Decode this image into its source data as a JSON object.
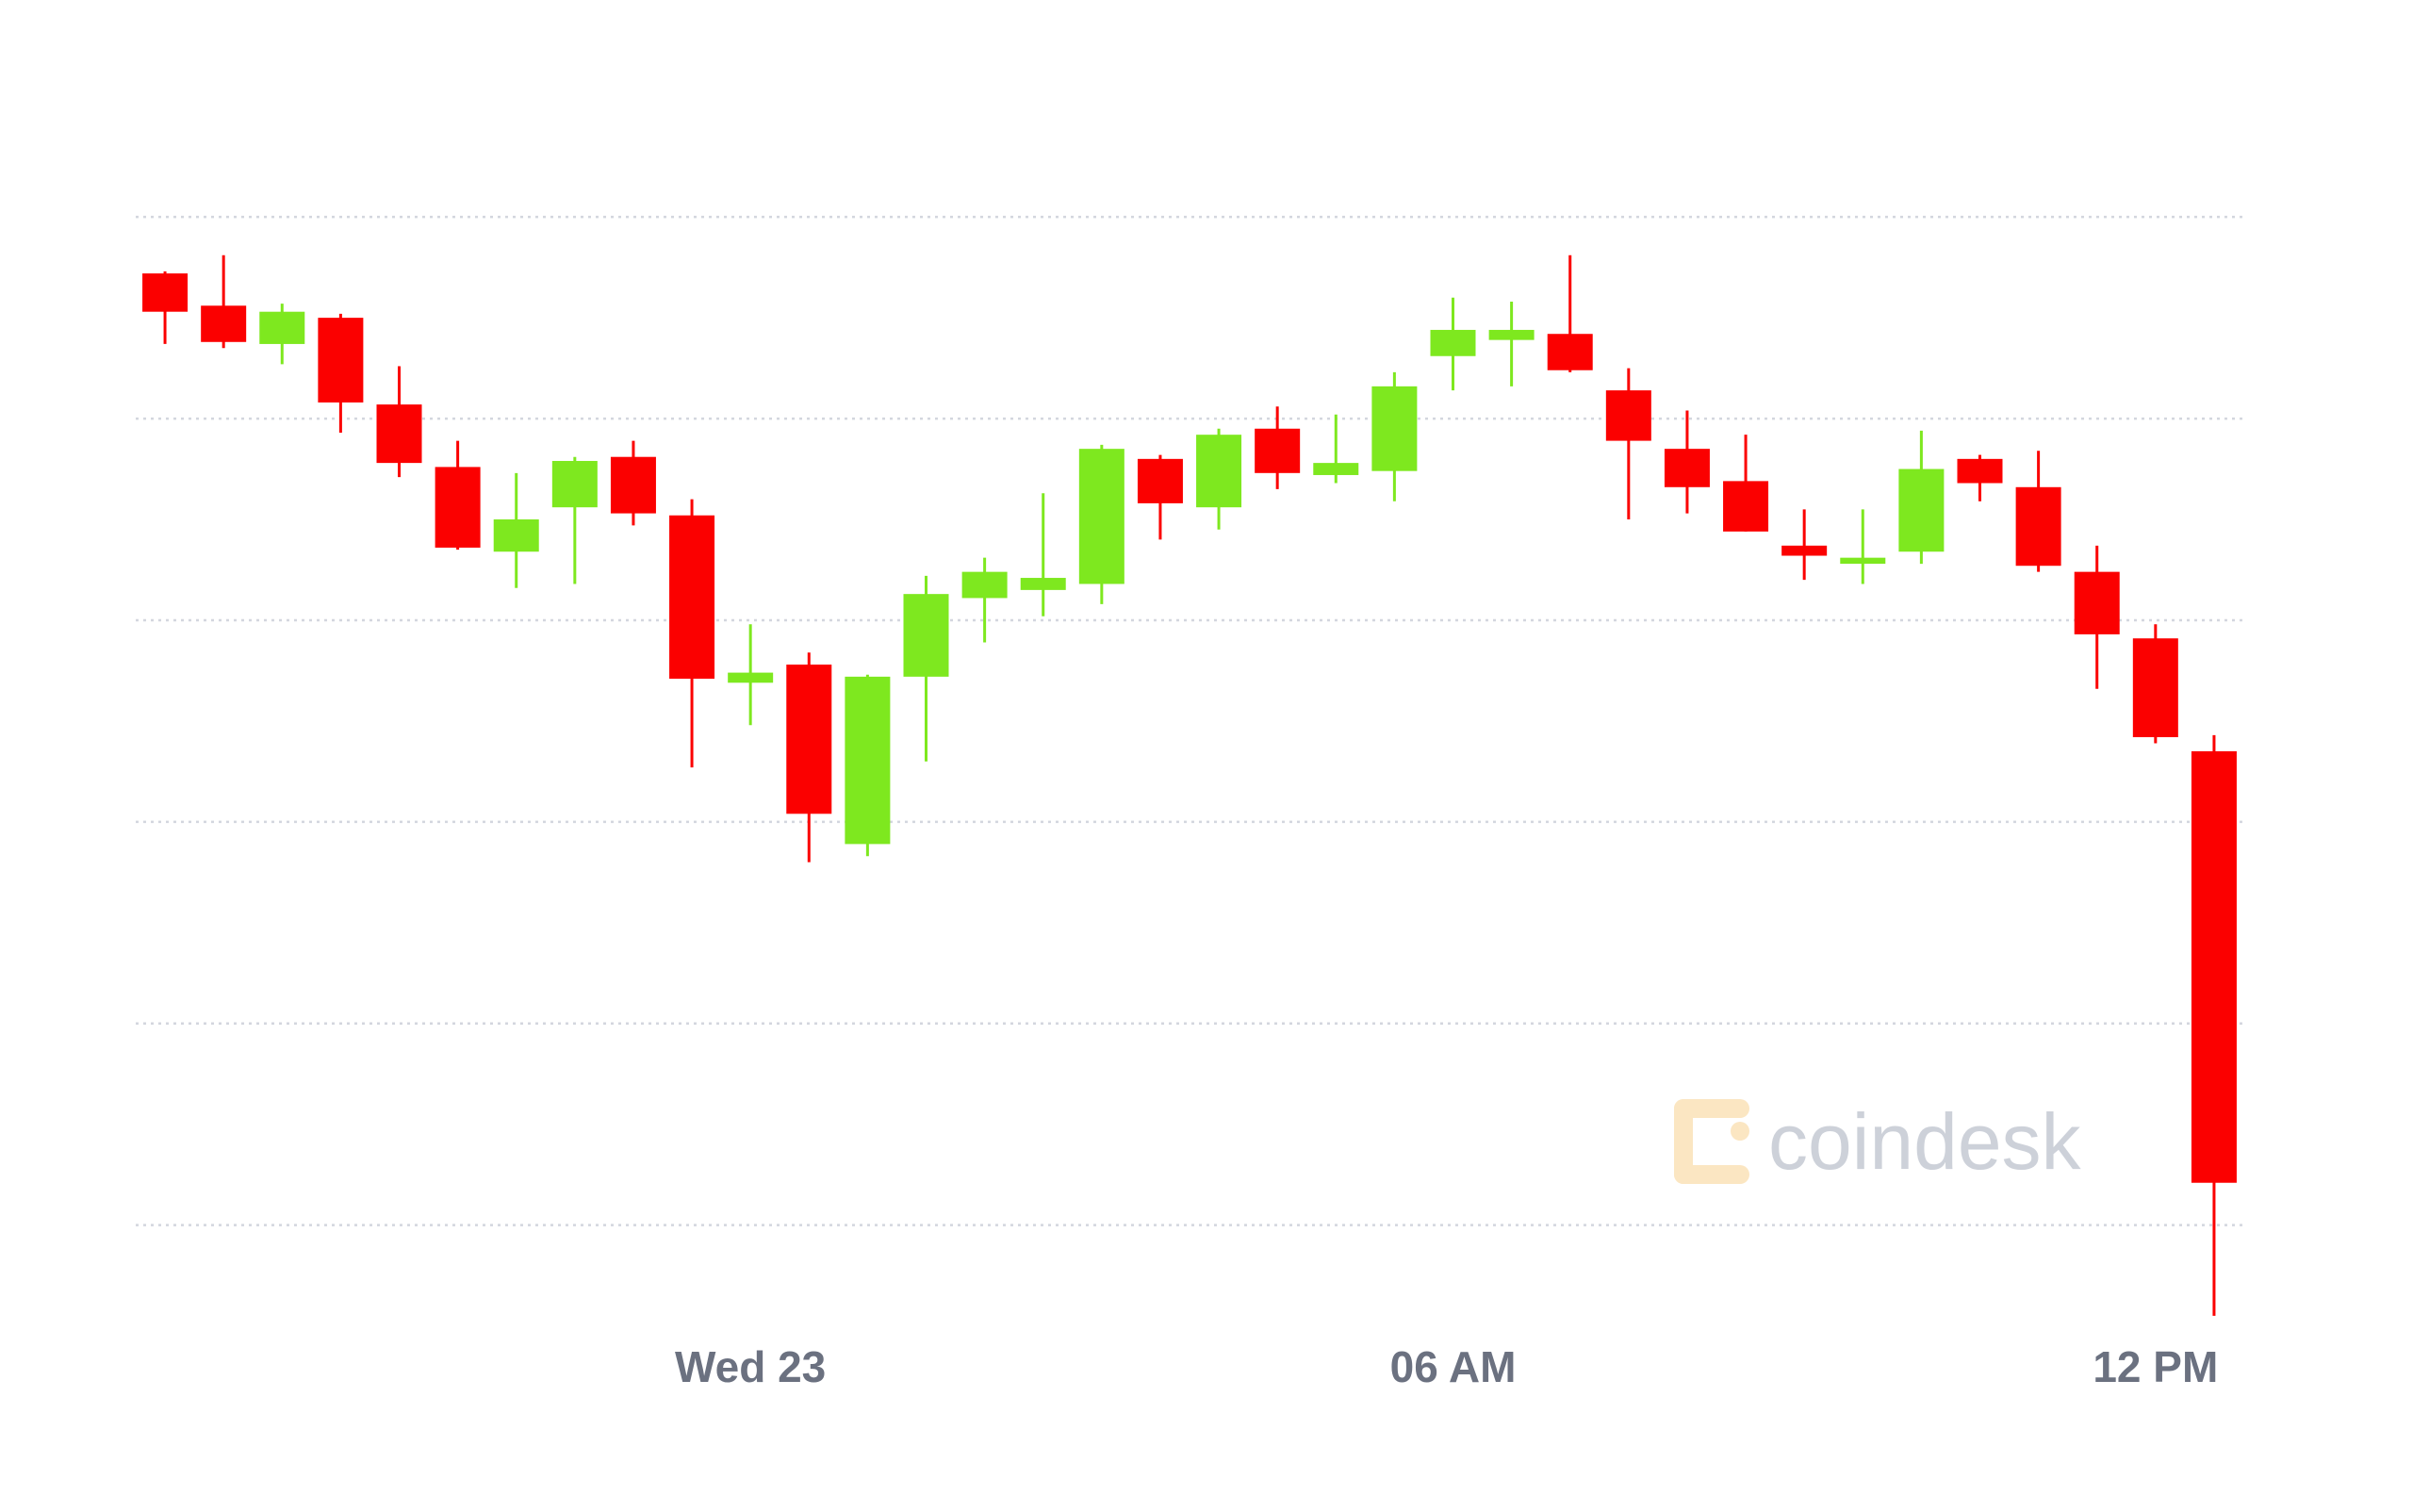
{
  "chart_data": {
    "type": "candlestick",
    "watermark": "coindesk",
    "categories": [
      null,
      null,
      null,
      null,
      null,
      null,
      null,
      null,
      null,
      null,
      "Wed 23",
      null,
      null,
      null,
      null,
      null,
      null,
      null,
      null,
      null,
      null,
      null,
      "06 AM",
      null,
      null,
      null,
      null,
      null,
      null,
      null,
      null,
      null,
      null,
      null,
      "12 PM",
      null
    ],
    "open": [
      4.72,
      4.56,
      4.37,
      4.5,
      4.07,
      3.76,
      3.34,
      3.56,
      3.81,
      3.52,
      2.69,
      2.78,
      1.89,
      2.72,
      3.11,
      3.15,
      3.18,
      3.8,
      3.56,
      3.95,
      3.72,
      3.74,
      4.31,
      4.39,
      4.42,
      4.14,
      3.85,
      3.69,
      3.37,
      3.28,
      3.34,
      3.8,
      3.66,
      3.24,
      2.91,
      2.35
    ],
    "high": [
      4.73,
      4.81,
      4.57,
      4.52,
      4.26,
      3.89,
      3.73,
      3.81,
      3.89,
      3.6,
      2.98,
      2.84,
      2.73,
      3.22,
      3.31,
      3.63,
      3.87,
      3.82,
      3.95,
      4.06,
      4.02,
      4.23,
      4.6,
      4.58,
      4.81,
      4.25,
      4.04,
      3.92,
      3.55,
      3.55,
      3.94,
      3.82,
      3.84,
      3.37,
      2.98,
      2.43
    ],
    "low": [
      4.37,
      4.35,
      4.27,
      3.93,
      3.71,
      3.35,
      3.16,
      3.18,
      3.47,
      2.27,
      2.48,
      1.8,
      1.83,
      2.3,
      2.89,
      3.02,
      3.08,
      3.4,
      3.45,
      3.65,
      3.68,
      3.59,
      4.14,
      4.16,
      4.23,
      3.5,
      3.53,
      3.44,
      3.2,
      3.18,
      3.28,
      3.59,
      3.24,
      2.66,
      2.39,
      -0.45
    ],
    "close": [
      4.53,
      4.38,
      4.53,
      4.08,
      3.78,
      3.36,
      3.5,
      3.79,
      3.53,
      2.71,
      2.74,
      2.04,
      2.72,
      3.13,
      3.24,
      3.21,
      3.85,
      3.58,
      3.92,
      3.73,
      3.78,
      4.16,
      4.44,
      4.44,
      4.24,
      3.89,
      3.66,
      3.44,
      3.32,
      3.31,
      3.75,
      3.68,
      3.27,
      2.93,
      2.42,
      0.21
    ],
    "up_color": "#7ee81f",
    "down_color": "#fb0000",
    "ylim": [
      -0.6,
      5.3
    ],
    "yticks": [
      0,
      1,
      2,
      3,
      4,
      5
    ],
    "grid": true
  }
}
